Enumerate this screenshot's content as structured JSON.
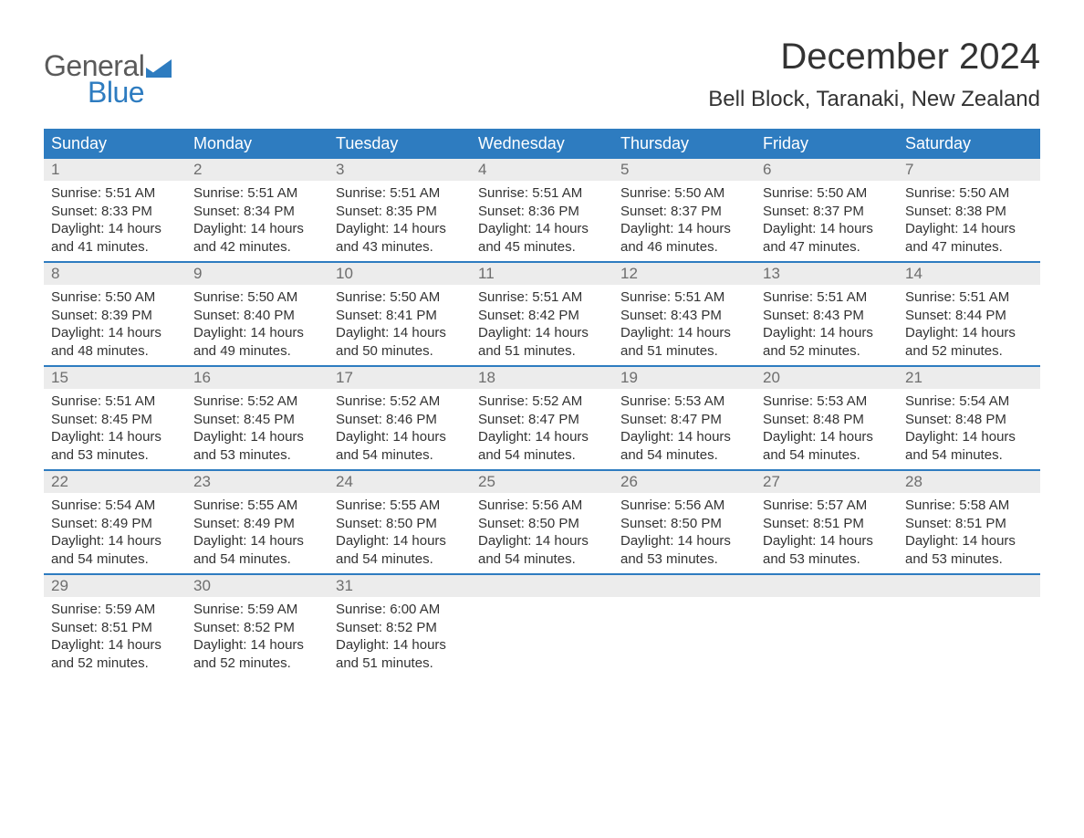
{
  "logo": {
    "text_top": "General",
    "text_bottom": "Blue",
    "text_color_top": "#5a5a5a",
    "text_color_bottom": "#2e7cc0",
    "flag_color": "#2e7cc0"
  },
  "title": "December 2024",
  "location": "Bell Block, Taranaki, New Zealand",
  "colors": {
    "header_bg": "#2e7cc0",
    "header_text": "#ffffff",
    "week_divider": "#2e7cc0",
    "daynum_bg": "#ececec",
    "daynum_text": "#6e6e6e",
    "body_text": "#333333",
    "page_bg": "#ffffff"
  },
  "typography": {
    "title_fontsize": 40,
    "location_fontsize": 24,
    "weekday_fontsize": 18,
    "daynum_fontsize": 17,
    "body_fontsize": 15,
    "font_family": "Arial, Helvetica, sans-serif"
  },
  "weekdays": [
    "Sunday",
    "Monday",
    "Tuesday",
    "Wednesday",
    "Thursday",
    "Friday",
    "Saturday"
  ],
  "weeks": [
    [
      {
        "n": "1",
        "sunrise": "Sunrise: 5:51 AM",
        "sunset": "Sunset: 8:33 PM",
        "d1": "Daylight: 14 hours",
        "d2": "and 41 minutes."
      },
      {
        "n": "2",
        "sunrise": "Sunrise: 5:51 AM",
        "sunset": "Sunset: 8:34 PM",
        "d1": "Daylight: 14 hours",
        "d2": "and 42 minutes."
      },
      {
        "n": "3",
        "sunrise": "Sunrise: 5:51 AM",
        "sunset": "Sunset: 8:35 PM",
        "d1": "Daylight: 14 hours",
        "d2": "and 43 minutes."
      },
      {
        "n": "4",
        "sunrise": "Sunrise: 5:51 AM",
        "sunset": "Sunset: 8:36 PM",
        "d1": "Daylight: 14 hours",
        "d2": "and 45 minutes."
      },
      {
        "n": "5",
        "sunrise": "Sunrise: 5:50 AM",
        "sunset": "Sunset: 8:37 PM",
        "d1": "Daylight: 14 hours",
        "d2": "and 46 minutes."
      },
      {
        "n": "6",
        "sunrise": "Sunrise: 5:50 AM",
        "sunset": "Sunset: 8:37 PM",
        "d1": "Daylight: 14 hours",
        "d2": "and 47 minutes."
      },
      {
        "n": "7",
        "sunrise": "Sunrise: 5:50 AM",
        "sunset": "Sunset: 8:38 PM",
        "d1": "Daylight: 14 hours",
        "d2": "and 47 minutes."
      }
    ],
    [
      {
        "n": "8",
        "sunrise": "Sunrise: 5:50 AM",
        "sunset": "Sunset: 8:39 PM",
        "d1": "Daylight: 14 hours",
        "d2": "and 48 minutes."
      },
      {
        "n": "9",
        "sunrise": "Sunrise: 5:50 AM",
        "sunset": "Sunset: 8:40 PM",
        "d1": "Daylight: 14 hours",
        "d2": "and 49 minutes."
      },
      {
        "n": "10",
        "sunrise": "Sunrise: 5:50 AM",
        "sunset": "Sunset: 8:41 PM",
        "d1": "Daylight: 14 hours",
        "d2": "and 50 minutes."
      },
      {
        "n": "11",
        "sunrise": "Sunrise: 5:51 AM",
        "sunset": "Sunset: 8:42 PM",
        "d1": "Daylight: 14 hours",
        "d2": "and 51 minutes."
      },
      {
        "n": "12",
        "sunrise": "Sunrise: 5:51 AM",
        "sunset": "Sunset: 8:43 PM",
        "d1": "Daylight: 14 hours",
        "d2": "and 51 minutes."
      },
      {
        "n": "13",
        "sunrise": "Sunrise: 5:51 AM",
        "sunset": "Sunset: 8:43 PM",
        "d1": "Daylight: 14 hours",
        "d2": "and 52 minutes."
      },
      {
        "n": "14",
        "sunrise": "Sunrise: 5:51 AM",
        "sunset": "Sunset: 8:44 PM",
        "d1": "Daylight: 14 hours",
        "d2": "and 52 minutes."
      }
    ],
    [
      {
        "n": "15",
        "sunrise": "Sunrise: 5:51 AM",
        "sunset": "Sunset: 8:45 PM",
        "d1": "Daylight: 14 hours",
        "d2": "and 53 minutes."
      },
      {
        "n": "16",
        "sunrise": "Sunrise: 5:52 AM",
        "sunset": "Sunset: 8:45 PM",
        "d1": "Daylight: 14 hours",
        "d2": "and 53 minutes."
      },
      {
        "n": "17",
        "sunrise": "Sunrise: 5:52 AM",
        "sunset": "Sunset: 8:46 PM",
        "d1": "Daylight: 14 hours",
        "d2": "and 54 minutes."
      },
      {
        "n": "18",
        "sunrise": "Sunrise: 5:52 AM",
        "sunset": "Sunset: 8:47 PM",
        "d1": "Daylight: 14 hours",
        "d2": "and 54 minutes."
      },
      {
        "n": "19",
        "sunrise": "Sunrise: 5:53 AM",
        "sunset": "Sunset: 8:47 PM",
        "d1": "Daylight: 14 hours",
        "d2": "and 54 minutes."
      },
      {
        "n": "20",
        "sunrise": "Sunrise: 5:53 AM",
        "sunset": "Sunset: 8:48 PM",
        "d1": "Daylight: 14 hours",
        "d2": "and 54 minutes."
      },
      {
        "n": "21",
        "sunrise": "Sunrise: 5:54 AM",
        "sunset": "Sunset: 8:48 PM",
        "d1": "Daylight: 14 hours",
        "d2": "and 54 minutes."
      }
    ],
    [
      {
        "n": "22",
        "sunrise": "Sunrise: 5:54 AM",
        "sunset": "Sunset: 8:49 PM",
        "d1": "Daylight: 14 hours",
        "d2": "and 54 minutes."
      },
      {
        "n": "23",
        "sunrise": "Sunrise: 5:55 AM",
        "sunset": "Sunset: 8:49 PM",
        "d1": "Daylight: 14 hours",
        "d2": "and 54 minutes."
      },
      {
        "n": "24",
        "sunrise": "Sunrise: 5:55 AM",
        "sunset": "Sunset: 8:50 PM",
        "d1": "Daylight: 14 hours",
        "d2": "and 54 minutes."
      },
      {
        "n": "25",
        "sunrise": "Sunrise: 5:56 AM",
        "sunset": "Sunset: 8:50 PM",
        "d1": "Daylight: 14 hours",
        "d2": "and 54 minutes."
      },
      {
        "n": "26",
        "sunrise": "Sunrise: 5:56 AM",
        "sunset": "Sunset: 8:50 PM",
        "d1": "Daylight: 14 hours",
        "d2": "and 53 minutes."
      },
      {
        "n": "27",
        "sunrise": "Sunrise: 5:57 AM",
        "sunset": "Sunset: 8:51 PM",
        "d1": "Daylight: 14 hours",
        "d2": "and 53 minutes."
      },
      {
        "n": "28",
        "sunrise": "Sunrise: 5:58 AM",
        "sunset": "Sunset: 8:51 PM",
        "d1": "Daylight: 14 hours",
        "d2": "and 53 minutes."
      }
    ],
    [
      {
        "n": "29",
        "sunrise": "Sunrise: 5:59 AM",
        "sunset": "Sunset: 8:51 PM",
        "d1": "Daylight: 14 hours",
        "d2": "and 52 minutes."
      },
      {
        "n": "30",
        "sunrise": "Sunrise: 5:59 AM",
        "sunset": "Sunset: 8:52 PM",
        "d1": "Daylight: 14 hours",
        "d2": "and 52 minutes."
      },
      {
        "n": "31",
        "sunrise": "Sunrise: 6:00 AM",
        "sunset": "Sunset: 8:52 PM",
        "d1": "Daylight: 14 hours",
        "d2": "and 51 minutes."
      },
      {
        "empty": true
      },
      {
        "empty": true
      },
      {
        "empty": true
      },
      {
        "empty": true
      }
    ]
  ]
}
